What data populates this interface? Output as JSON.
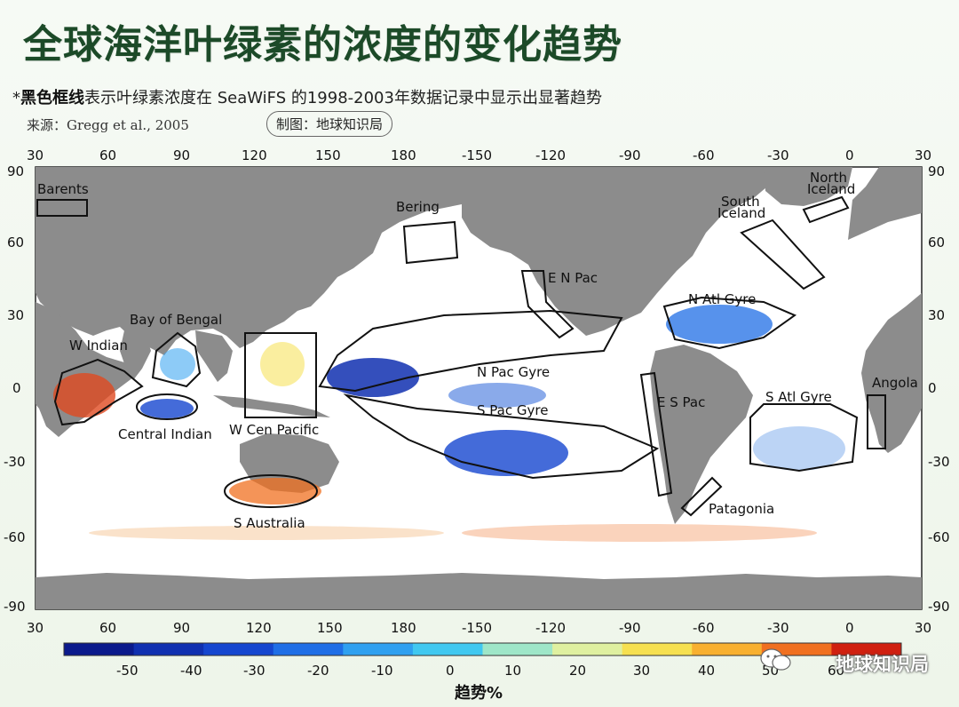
{
  "title": "全球海洋叶绿素的浓度的变化趋势",
  "note": {
    "prefix": "*",
    "highlight": "黑色框线",
    "text": "表示叶绿素浓度在 SeaWiFS 的1998-2003年数据记录中显示出显著趋势"
  },
  "source": "来源：Gregg et al., 2005",
  "credit": "制图：地球知识局",
  "watermark": "地球知识局",
  "map": {
    "top_lon_ticks": [
      "30",
      "60",
      "90",
      "120",
      "150",
      "180",
      "-150",
      "-120",
      "-90",
      "-60",
      "-30",
      "0",
      "30"
    ],
    "bottom_lon_ticks": [
      "30",
      "60",
      "90",
      "120",
      "150",
      "180",
      "-150",
      "-120",
      "-90",
      "-60",
      "-30",
      "0",
      "30"
    ],
    "lat_ticks_left": [
      "90",
      "60",
      "30",
      "0",
      "-30",
      "-60",
      "-90"
    ],
    "lat_ticks_right": [
      "90",
      "60",
      "30",
      "0",
      "-30",
      "-60",
      "-90"
    ],
    "regions": [
      {
        "label": "Barents"
      },
      {
        "label": "Bering"
      },
      {
        "label": "North Iceland"
      },
      {
        "label": "South Iceland"
      },
      {
        "label": "E N Pac"
      },
      {
        "label": "N Atl Gyre"
      },
      {
        "label": "Bay of Bengal"
      },
      {
        "label": "W Indian"
      },
      {
        "label": "N Pac Gyre"
      },
      {
        "label": "S Pac Gyre"
      },
      {
        "label": "Central Indian"
      },
      {
        "label": "W Cen Pacific"
      },
      {
        "label": "E S Pac"
      },
      {
        "label": "S Atl Gyre"
      },
      {
        "label": "Angola"
      },
      {
        "label": "S Australia"
      },
      {
        "label": "Patagonia"
      }
    ]
  },
  "colorbar": {
    "title": "趋势%",
    "ticks": [
      "-50",
      "-40",
      "-30",
      "-20",
      "-10",
      "0",
      "10",
      "20",
      "30",
      "40",
      "50",
      "60"
    ],
    "colors": [
      "#0b1a8c",
      "#1030b0",
      "#1546cf",
      "#1f6ee6",
      "#2fa0f0",
      "#40c8f0",
      "#9ee6c8",
      "#dff0a0",
      "#f6e050",
      "#f8b030",
      "#f07020",
      "#d02010"
    ]
  },
  "colors": {
    "land": "#8c8c8c",
    "ocean": "#ffffff",
    "title": "#1c4a28"
  }
}
